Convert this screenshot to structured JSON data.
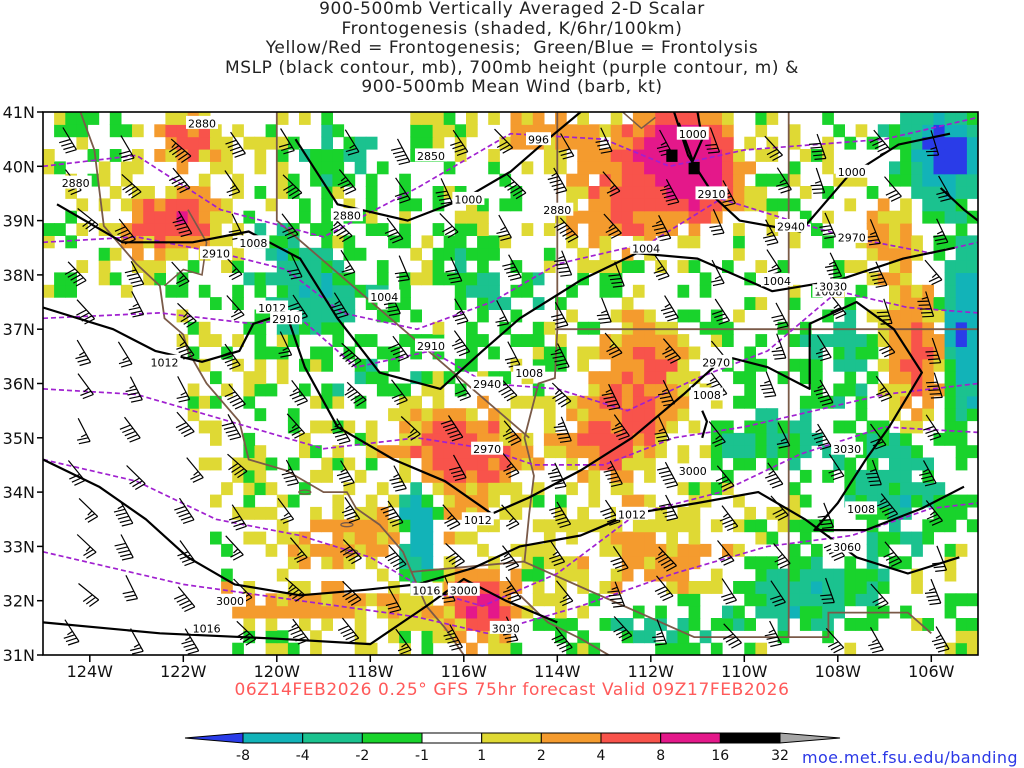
{
  "title": {
    "lines": [
      "900-500mb Vertically Averaged 2-D Scalar",
      "Frontogenesis (shaded, K/6hr/100km)",
      "Yellow/Red = Frontogenesis;  Green/Blue = Frontolysis",
      "MSLP (black contour, mb), 700mb height (purple contour, m) &",
      "900-500mb Mean Wind (barb, kt)"
    ]
  },
  "map": {
    "lat_labels": [
      "41N",
      "40N",
      "39N",
      "38N",
      "37N",
      "36N",
      "35N",
      "34N",
      "33N",
      "32N",
      "31N"
    ],
    "lon_labels": [
      "124W",
      "122W",
      "120W",
      "118W",
      "116W",
      "114W",
      "112W",
      "110W",
      "108W",
      "106W"
    ],
    "extent": {
      "lon_min": -125,
      "lon_max": -105,
      "lat_min": 31,
      "lat_max": 41
    },
    "mslp_labels": [
      {
        "text": "996",
        "lon": -114.4,
        "lat": 40.5
      },
      {
        "text": "1000",
        "lon": -111.1,
        "lat": 40.6
      },
      {
        "text": "1000",
        "lon": -107.7,
        "lat": 39.9
      },
      {
        "text": "1000",
        "lon": -115.9,
        "lat": 39.4
      },
      {
        "text": "1004",
        "lon": -112.1,
        "lat": 38.5
      },
      {
        "text": "1004",
        "lon": -109.3,
        "lat": 37.9
      },
      {
        "text": "1004",
        "lon": -117.7,
        "lat": 37.6
      },
      {
        "text": "1008",
        "lon": -120.5,
        "lat": 38.6
      },
      {
        "text": "1008",
        "lon": -108.2,
        "lat": 37.7
      },
      {
        "text": "1008",
        "lon": -114.6,
        "lat": 36.2
      },
      {
        "text": "1008",
        "lon": -110.8,
        "lat": 35.8
      },
      {
        "text": "1008",
        "lon": -107.5,
        "lat": 33.7
      },
      {
        "text": "1012",
        "lon": -120.1,
        "lat": 37.4
      },
      {
        "text": "1012",
        "lon": -122.4,
        "lat": 36.4
      },
      {
        "text": "1012",
        "lon": -115.7,
        "lat": 33.5
      },
      {
        "text": "1012",
        "lon": -112.4,
        "lat": 33.6
      },
      {
        "text": "1016",
        "lon": -116.8,
        "lat": 32.2
      },
      {
        "text": "1016",
        "lon": -121.5,
        "lat": 31.5
      }
    ],
    "height_labels": [
      {
        "text": "2880",
        "lon": -121.6,
        "lat": 40.8
      },
      {
        "text": "2880",
        "lon": -124.3,
        "lat": 39.7
      },
      {
        "text": "2880",
        "lon": -118.5,
        "lat": 39.1
      },
      {
        "text": "2880",
        "lon": -114.0,
        "lat": 39.2
      },
      {
        "text": "2850",
        "lon": -116.7,
        "lat": 40.2
      },
      {
        "text": "2910",
        "lon": -121.3,
        "lat": 38.4
      },
      {
        "text": "2910",
        "lon": -110.7,
        "lat": 39.5
      },
      {
        "text": "2910",
        "lon": -116.7,
        "lat": 36.7
      },
      {
        "text": "2910",
        "lon": -119.8,
        "lat": 37.2
      },
      {
        "text": "2940",
        "lon": -109.0,
        "lat": 38.9
      },
      {
        "text": "2940",
        "lon": -115.5,
        "lat": 36.0
      },
      {
        "text": "2970",
        "lon": -107.7,
        "lat": 38.7
      },
      {
        "text": "2970",
        "lon": -110.6,
        "lat": 36.4
      },
      {
        "text": "2970",
        "lon": -115.5,
        "lat": 34.8
      },
      {
        "text": "3000",
        "lon": -111.1,
        "lat": 34.4
      },
      {
        "text": "3000",
        "lon": -116.0,
        "lat": 32.2
      },
      {
        "text": "3000",
        "lon": -121.0,
        "lat": 32.0
      },
      {
        "text": "3030",
        "lon": -107.8,
        "lat": 34.8
      },
      {
        "text": "3030",
        "lon": -115.1,
        "lat": 31.5
      },
      {
        "text": "3060",
        "lon": -107.8,
        "lat": 33.0
      },
      {
        "text": "3030",
        "lon": -108.1,
        "lat": 37.8
      }
    ]
  },
  "colorbar": {
    "labels": [
      "-8",
      "-4",
      "-2",
      "-1",
      "1",
      "2",
      "4",
      "8",
      "16",
      "32"
    ],
    "colors": [
      "#2a3ce8",
      "#12b3b8",
      "#1bc28f",
      "#19d32c",
      "#ffffff",
      "#dfd934",
      "#f49b2e",
      "#f8534b",
      "#e4188a",
      "#000000",
      "#a6a6a6"
    ]
  },
  "footer": {
    "run": "06Z14FEB2026 0.25° GFS 75hr forecast Valid 09Z17FEB2026",
    "credit": "moe.met.fsu.edu/banding"
  }
}
